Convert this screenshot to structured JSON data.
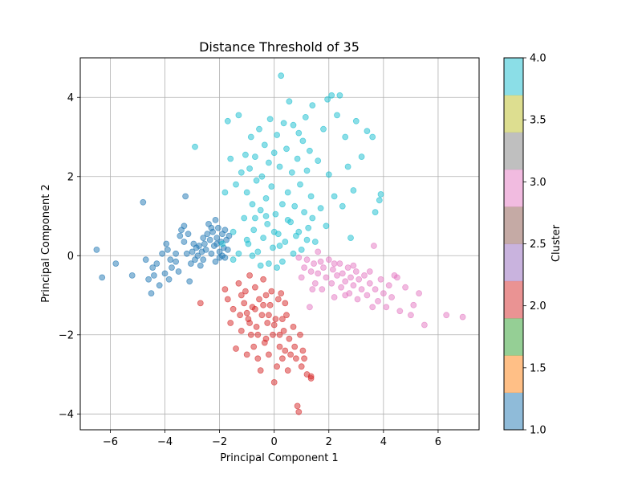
{
  "chart_data": {
    "type": "scatter",
    "title": "Distance Threshold of 35",
    "xlabel": "Principal Component 1",
    "ylabel": "Principal Component 2",
    "xlim": [
      -7.1,
      7.5
    ],
    "ylim": [
      -4.4,
      5.0
    ],
    "xticks": [
      -6,
      -4,
      -2,
      0,
      2,
      4,
      6
    ],
    "yticks": [
      -4,
      -2,
      0,
      2,
      4
    ],
    "grid": true,
    "colorbar": {
      "label": "Cluster",
      "range": [
        1.0,
        4.0
      ],
      "ticks": [
        "1.0",
        "1.5",
        "2.0",
        "2.5",
        "3.0",
        "3.5",
        "4.0"
      ],
      "colors": [
        "#1f77b4",
        "#ff7f0e",
        "#2ca02c",
        "#d62728",
        "#9467bd",
        "#8c564b",
        "#e377c2",
        "#7f7f7f",
        "#bcbd22",
        "#17becf"
      ]
    },
    "series": [
      {
        "cluster": 1,
        "color": "#1f77b4",
        "points": [
          [
            -6.5,
            0.15
          ],
          [
            -6.3,
            -0.55
          ],
          [
            -5.8,
            -0.2
          ],
          [
            -5.2,
            -0.5
          ],
          [
            -4.8,
            1.35
          ],
          [
            -4.7,
            -0.1
          ],
          [
            -4.6,
            -0.6
          ],
          [
            -4.5,
            -0.95
          ],
          [
            -4.45,
            -0.3
          ],
          [
            -4.4,
            -0.5
          ],
          [
            -4.3,
            -0.2
          ],
          [
            -4.2,
            -0.75
          ],
          [
            -4.1,
            0.05
          ],
          [
            -4.0,
            -0.45
          ],
          [
            -3.95,
            0.3
          ],
          [
            -3.9,
            0.15
          ],
          [
            -3.85,
            -0.6
          ],
          [
            -3.8,
            -0.1
          ],
          [
            -3.75,
            -0.3
          ],
          [
            -3.6,
            -0.15
          ],
          [
            -3.5,
            -0.4
          ],
          [
            -3.45,
            0.5
          ],
          [
            -3.4,
            0.65
          ],
          [
            -3.3,
            0.75
          ],
          [
            -3.25,
            1.5
          ],
          [
            -3.2,
            0.05
          ],
          [
            -3.15,
            0.55
          ],
          [
            -3.1,
            -0.65
          ],
          [
            -3.05,
            -0.2
          ],
          [
            -3.0,
            0.1
          ],
          [
            -2.95,
            0.3
          ],
          [
            -2.9,
            -0.1
          ],
          [
            -2.85,
            0.2
          ],
          [
            -2.8,
            0.0
          ],
          [
            -2.75,
            0.25
          ],
          [
            -2.7,
            -0.25
          ],
          [
            -2.65,
            0.1
          ],
          [
            -2.6,
            0.45
          ],
          [
            -2.55,
            0.3
          ],
          [
            -2.5,
            0.15
          ],
          [
            -2.45,
            0.55
          ],
          [
            -2.4,
            0.8
          ],
          [
            -2.35,
            0.4
          ],
          [
            -2.3,
            0.05
          ],
          [
            -2.25,
            0.6
          ],
          [
            -2.2,
            0.25
          ],
          [
            -2.15,
            -0.15
          ],
          [
            -2.1,
            0.45
          ],
          [
            -2.05,
            0.7
          ],
          [
            -2.0,
            0.1
          ],
          [
            -1.95,
            0.35
          ],
          [
            -1.9,
            0.55
          ],
          [
            -1.85,
            0.2
          ],
          [
            -1.8,
            0.65
          ],
          [
            -1.75,
            0.4
          ],
          [
            -1.7,
            0.15
          ],
          [
            -1.65,
            0.5
          ],
          [
            -2.15,
            0.9
          ],
          [
            -2.0,
            -0.05
          ],
          [
            -1.9,
            0.0
          ],
          [
            -3.3,
            0.35
          ],
          [
            -3.6,
            0.05
          ],
          [
            -2.6,
            -0.1
          ],
          [
            -2.3,
            0.7
          ],
          [
            -2.1,
            0.3
          ],
          [
            -1.8,
            -0.05
          ]
        ]
      },
      {
        "cluster": 2,
        "color": "#d62728",
        "points": [
          [
            -2.7,
            -1.2
          ],
          [
            -1.8,
            -0.85
          ],
          [
            -1.7,
            -1.1
          ],
          [
            -1.6,
            -1.7
          ],
          [
            -1.5,
            -1.35
          ],
          [
            -1.4,
            -2.35
          ],
          [
            -1.3,
            -0.7
          ],
          [
            -1.25,
            -1.5
          ],
          [
            -1.2,
            -1.9
          ],
          [
            -1.1,
            -1.2
          ],
          [
            -1.05,
            -0.9
          ],
          [
            -1.0,
            -2.5
          ],
          [
            -0.95,
            -1.6
          ],
          [
            -0.9,
            -0.5
          ],
          [
            -0.85,
            -2.0
          ],
          [
            -0.8,
            -1.3
          ],
          [
            -0.75,
            -2.3
          ],
          [
            -0.7,
            -0.8
          ],
          [
            -0.65,
            -1.8
          ],
          [
            -0.6,
            -2.6
          ],
          [
            -0.55,
            -1.1
          ],
          [
            -0.5,
            -2.9
          ],
          [
            -0.45,
            -1.5
          ],
          [
            -0.4,
            -0.6
          ],
          [
            -0.35,
            -2.2
          ],
          [
            -0.3,
            -1.0
          ],
          [
            -0.25,
            -1.7
          ],
          [
            -0.2,
            -2.5
          ],
          [
            -0.15,
            -1.25
          ],
          [
            -0.1,
            -0.9
          ],
          [
            -0.05,
            -2.0
          ],
          [
            0.0,
            -3.2
          ],
          [
            0.05,
            -1.6
          ],
          [
            0.1,
            -2.8
          ],
          [
            0.15,
            -1.1
          ],
          [
            0.2,
            -2.3
          ],
          [
            0.25,
            -0.95
          ],
          [
            0.3,
            -2.6
          ],
          [
            0.35,
            -1.9
          ],
          [
            0.4,
            -2.4
          ],
          [
            0.45,
            -1.5
          ],
          [
            0.5,
            -2.9
          ],
          [
            0.55,
            -2.1
          ],
          [
            0.6,
            -2.5
          ],
          [
            0.7,
            -1.8
          ],
          [
            0.75,
            -2.3
          ],
          [
            0.8,
            -2.6
          ],
          [
            0.85,
            -3.8
          ],
          [
            0.9,
            -3.95
          ],
          [
            0.95,
            -2.0
          ],
          [
            1.0,
            -2.8
          ],
          [
            1.05,
            -2.4
          ],
          [
            1.1,
            -2.6
          ],
          [
            1.2,
            -3.0
          ],
          [
            1.35,
            -3.05
          ],
          [
            1.35,
            -3.1
          ],
          [
            -1.0,
            -1.45
          ],
          [
            -0.7,
            -1.35
          ],
          [
            -0.4,
            -1.25
          ],
          [
            -0.2,
            -1.5
          ],
          [
            0.0,
            -1.75
          ],
          [
            0.3,
            -1.6
          ],
          [
            -0.6,
            -2.0
          ],
          [
            -0.3,
            -2.1
          ],
          [
            0.2,
            -2.0
          ],
          [
            -1.2,
            -1.0
          ],
          [
            -0.9,
            -1.7
          ],
          [
            0.4,
            -1.2
          ]
        ]
      },
      {
        "cluster": 3,
        "color": "#e377c2",
        "points": [
          [
            0.9,
            -0.05
          ],
          [
            1.0,
            -0.55
          ],
          [
            1.1,
            -0.3
          ],
          [
            1.2,
            -0.1
          ],
          [
            1.3,
            -1.3
          ],
          [
            1.35,
            -0.4
          ],
          [
            1.45,
            -0.2
          ],
          [
            1.5,
            -0.7
          ],
          [
            1.6,
            -0.45
          ],
          [
            1.7,
            -0.15
          ],
          [
            1.75,
            -0.85
          ],
          [
            1.8,
            -0.3
          ],
          [
            1.9,
            -0.55
          ],
          [
            2.0,
            -0.1
          ],
          [
            2.1,
            -0.7
          ],
          [
            2.15,
            -0.35
          ],
          [
            2.2,
            -1.05
          ],
          [
            2.3,
            -0.5
          ],
          [
            2.4,
            -0.2
          ],
          [
            2.45,
            -0.8
          ],
          [
            2.5,
            -0.45
          ],
          [
            2.6,
            -0.65
          ],
          [
            2.7,
            -0.3
          ],
          [
            2.75,
            -0.95
          ],
          [
            2.8,
            -0.55
          ],
          [
            2.9,
            -0.75
          ],
          [
            3.0,
            -0.4
          ],
          [
            3.05,
            -1.1
          ],
          [
            3.1,
            -0.6
          ],
          [
            3.2,
            -0.85
          ],
          [
            3.3,
            -0.5
          ],
          [
            3.4,
            -1.0
          ],
          [
            3.5,
            -0.7
          ],
          [
            3.6,
            -1.3
          ],
          [
            3.65,
            0.25
          ],
          [
            3.7,
            -0.85
          ],
          [
            3.8,
            -1.15
          ],
          [
            3.9,
            -0.6
          ],
          [
            4.0,
            -0.95
          ],
          [
            4.1,
            -1.3
          ],
          [
            4.2,
            -0.75
          ],
          [
            4.3,
            -1.05
          ],
          [
            4.5,
            -0.55
          ],
          [
            4.6,
            -1.4
          ],
          [
            4.8,
            -0.8
          ],
          [
            5.0,
            -1.5
          ],
          [
            5.1,
            -1.25
          ],
          [
            5.3,
            -0.95
          ],
          [
            5.5,
            -1.75
          ],
          [
            6.3,
            -1.5
          ],
          [
            6.9,
            -1.55
          ],
          [
            1.6,
            0.1
          ],
          [
            2.2,
            -0.2
          ],
          [
            2.9,
            -0.25
          ],
          [
            3.5,
            -0.4
          ],
          [
            4.4,
            -0.5
          ],
          [
            2.6,
            -1.0
          ],
          [
            1.4,
            -0.85
          ]
        ]
      },
      {
        "cluster": 4,
        "color": "#17becf",
        "points": [
          [
            -1.7,
            3.4
          ],
          [
            -1.6,
            2.45
          ],
          [
            -1.5,
            0.6
          ],
          [
            -1.4,
            1.8
          ],
          [
            -1.3,
            3.55
          ],
          [
            -1.2,
            2.1
          ],
          [
            -1.1,
            0.95
          ],
          [
            -1.05,
            2.55
          ],
          [
            -1.0,
            1.6
          ],
          [
            -0.95,
            0.3
          ],
          [
            -0.9,
            2.2
          ],
          [
            -0.85,
            3.0
          ],
          [
            -0.8,
            1.3
          ],
          [
            -0.75,
            0.65
          ],
          [
            -0.7,
            2.5
          ],
          [
            -0.65,
            1.9
          ],
          [
            -0.6,
            0.1
          ],
          [
            -0.55,
            3.2
          ],
          [
            -0.5,
            1.15
          ],
          [
            -0.45,
            2.0
          ],
          [
            -0.4,
            0.45
          ],
          [
            -0.35,
            2.8
          ],
          [
            -0.3,
            1.45
          ],
          [
            -0.25,
            0.8
          ],
          [
            -0.2,
            2.35
          ],
          [
            -0.15,
            3.45
          ],
          [
            -0.1,
            1.75
          ],
          [
            -0.05,
            0.2
          ],
          [
            0.0,
            2.6
          ],
          [
            0.05,
            1.05
          ],
          [
            0.1,
            3.05
          ],
          [
            0.15,
            0.55
          ],
          [
            0.2,
            2.25
          ],
          [
            0.25,
            4.55
          ],
          [
            0.3,
            1.3
          ],
          [
            0.35,
            3.35
          ],
          [
            0.4,
            0.35
          ],
          [
            0.45,
            2.7
          ],
          [
            0.5,
            1.6
          ],
          [
            0.55,
            3.9
          ],
          [
            0.6,
            0.85
          ],
          [
            0.65,
            2.1
          ],
          [
            0.7,
            3.3
          ],
          [
            0.75,
            1.25
          ],
          [
            0.8,
            0.5
          ],
          [
            0.85,
            2.45
          ],
          [
            0.9,
            3.1
          ],
          [
            0.95,
            1.8
          ],
          [
            1.0,
            0.15
          ],
          [
            1.05,
            2.9
          ],
          [
            1.1,
            1.1
          ],
          [
            1.15,
            3.5
          ],
          [
            1.2,
            2.15
          ],
          [
            1.25,
            0.7
          ],
          [
            1.3,
            2.65
          ],
          [
            1.35,
            1.5
          ],
          [
            1.4,
            3.8
          ],
          [
            1.5,
            0.35
          ],
          [
            1.6,
            2.4
          ],
          [
            1.7,
            1.2
          ],
          [
            1.8,
            3.2
          ],
          [
            1.9,
            0.75
          ],
          [
            1.95,
            3.95
          ],
          [
            2.0,
            2.05
          ],
          [
            2.1,
            4.05
          ],
          [
            2.2,
            1.5
          ],
          [
            2.3,
            3.55
          ],
          [
            2.4,
            4.05
          ],
          [
            2.5,
            1.25
          ],
          [
            2.6,
            3.0
          ],
          [
            2.7,
            2.25
          ],
          [
            2.8,
            0.45
          ],
          [
            2.9,
            1.65
          ],
          [
            3.0,
            3.4
          ],
          [
            3.2,
            2.5
          ],
          [
            3.4,
            3.15
          ],
          [
            3.6,
            3.0
          ],
          [
            3.7,
            1.1
          ],
          [
            3.85,
            1.4
          ],
          [
            3.9,
            1.55
          ],
          [
            -2.9,
            2.75
          ],
          [
            -1.9,
            0.3
          ],
          [
            -1.8,
            1.6
          ],
          [
            -1.3,
            0.05
          ],
          [
            -0.7,
            0.95
          ],
          [
            -0.2,
            -0.2
          ],
          [
            0.3,
            -0.15
          ],
          [
            0.7,
            0.05
          ],
          [
            1.2,
            0.4
          ],
          [
            0.0,
            0.6
          ],
          [
            -0.5,
            -0.25
          ],
          [
            -1.0,
            0.4
          ],
          [
            0.5,
            0.9
          ],
          [
            -0.3,
            1.0
          ],
          [
            0.2,
            0.25
          ],
          [
            0.9,
            0.6
          ],
          [
            1.4,
            0.95
          ],
          [
            -0.8,
            0.0
          ],
          [
            0.1,
            -0.3
          ],
          [
            -1.5,
            -0.1
          ]
        ]
      }
    ]
  }
}
